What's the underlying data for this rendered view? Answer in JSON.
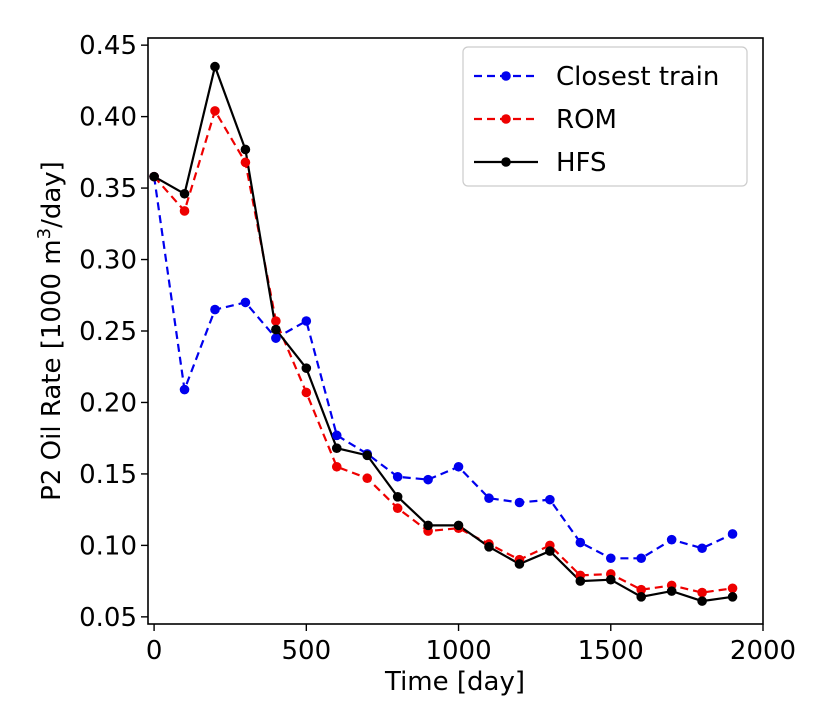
{
  "chart_data": {
    "type": "line",
    "title": "",
    "xlabel": "Time [day]",
    "ylabel_main": "P2 Oil Rate [1000 m",
    "ylabel_sup": "3",
    "ylabel_tail": "/day]",
    "xlim": [
      -20,
      2000
    ],
    "ylim": [
      0.045,
      0.455
    ],
    "xticks": [
      0,
      500,
      1000,
      1500,
      2000
    ],
    "xtick_labels": [
      "0",
      "500",
      "1000",
      "1500",
      "2000"
    ],
    "yticks": [
      0.05,
      0.1,
      0.15,
      0.2,
      0.25,
      0.3,
      0.35,
      0.4,
      0.45
    ],
    "ytick_labels": [
      "0.05",
      "0.10",
      "0.15",
      "0.20",
      "0.25",
      "0.30",
      "0.35",
      "0.40",
      "0.45"
    ],
    "grid": false,
    "legend_position": "top-right",
    "x": [
      0,
      100,
      200,
      300,
      400,
      500,
      600,
      700,
      800,
      900,
      1000,
      1100,
      1200,
      1300,
      1400,
      1500,
      1600,
      1700,
      1800,
      1900
    ],
    "series": [
      {
        "name": "Closest train",
        "color": "#0000ee",
        "linestyle": "dashed",
        "values": [
          0.358,
          0.209,
          0.265,
          0.27,
          0.245,
          0.257,
          0.177,
          0.164,
          0.148,
          0.146,
          0.155,
          0.133,
          0.13,
          0.132,
          0.102,
          0.091,
          0.091,
          0.104,
          0.098,
          0.108
        ]
      },
      {
        "name": "ROM",
        "color": "#ee0000",
        "linestyle": "dashed",
        "values": [
          0.358,
          0.334,
          0.404,
          0.368,
          0.257,
          0.207,
          0.155,
          0.147,
          0.126,
          0.11,
          0.112,
          0.101,
          0.09,
          0.1,
          0.079,
          0.08,
          0.069,
          0.072,
          0.067,
          0.07
        ]
      },
      {
        "name": "HFS",
        "color": "#000000",
        "linestyle": "solid",
        "values": [
          0.358,
          0.346,
          0.435,
          0.377,
          0.251,
          0.224,
          0.168,
          0.163,
          0.134,
          0.114,
          0.114,
          0.099,
          0.087,
          0.096,
          0.075,
          0.076,
          0.064,
          0.068,
          0.061,
          0.064
        ]
      }
    ]
  }
}
